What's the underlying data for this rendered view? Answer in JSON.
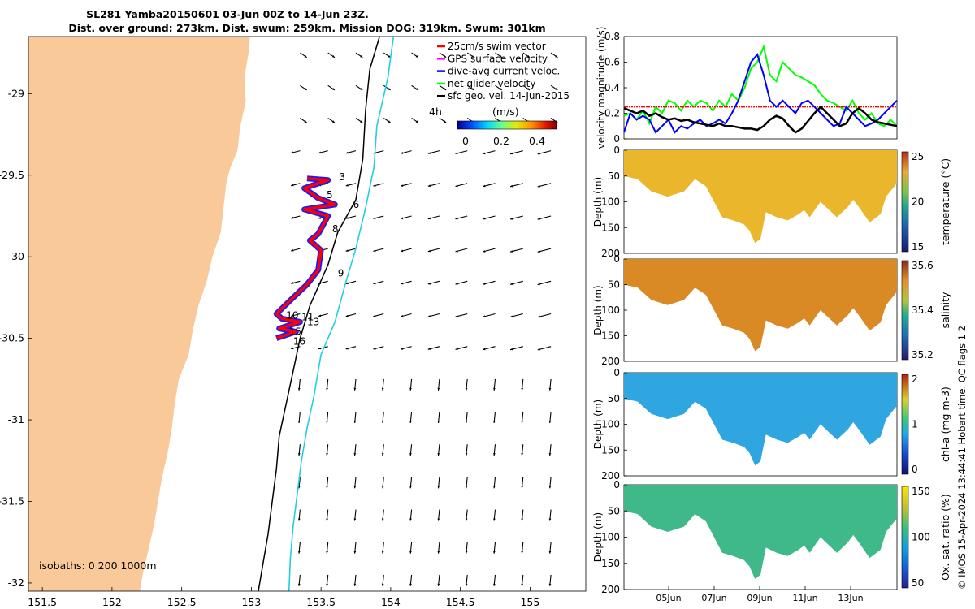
{
  "header": {
    "title_line1": "SL281 Yamba20150601 03-Jun 00Z to 14-Jun 23Z.",
    "title_line2": "Dist. over ground: 273km. Dist. swum: 259km. Mission DOG: 319km. Swum: 301km"
  },
  "legend": {
    "items": [
      {
        "label": "25cm/s swim vector",
        "color": "#ff0000"
      },
      {
        "label": "GPS surface velocity",
        "color": "#ff00ff"
      },
      {
        "label": "dive-avg current veloc.",
        "color": "#0000ff"
      },
      {
        "label": "net glider velocity",
        "color": "#00ff00"
      },
      {
        "label": "sfc geo. vel. 14-Jun-2015",
        "color": "#000000"
      }
    ],
    "time_label": "4h",
    "colorbar_unit": "(m/s)",
    "colorbar_ticks": [
      "0",
      "0.2",
      "0.4"
    ]
  },
  "isobath_note": "isobaths: 0   200  1000m",
  "copyright": "© IMOS 15-Apr-2024 13:44:41 Hobart time. QC flags 1  2",
  "colors": {
    "land": "#f9c99a",
    "isobath_200": "#000000",
    "isobath_1000": "#22cfe0",
    "track_red": "#ff0000",
    "track_blue": "#1a1aff"
  },
  "chart_data": [
    {
      "type": "map",
      "xlim": [
        151.4,
        155.4
      ],
      "ylim": [
        -32.05,
        -28.65
      ],
      "x_ticks": [
        "151.5",
        "152",
        "152.5",
        "153",
        "153.5",
        "154",
        "154.5",
        "155"
      ],
      "x_tick_values": [
        151.5,
        152,
        152.5,
        153,
        153.5,
        154,
        154.5,
        155
      ],
      "y_ticks": [
        "-29",
        "-29.5",
        "-30",
        "-30.5",
        "-31",
        "-31.5",
        "-32"
      ],
      "y_tick_values": [
        -29,
        -29.5,
        -30,
        -30.5,
        -31,
        -31.5,
        -32
      ],
      "track": [
        [
          153.4,
          -29.52
        ],
        [
          153.55,
          -29.53
        ],
        [
          153.38,
          -29.58
        ],
        [
          153.48,
          -29.64
        ],
        [
          153.6,
          -29.68
        ],
        [
          153.38,
          -29.71
        ],
        [
          153.55,
          -29.75
        ],
        [
          153.48,
          -29.86
        ],
        [
          153.42,
          -29.9
        ],
        [
          153.5,
          -29.96
        ],
        [
          153.48,
          -30.08
        ],
        [
          153.4,
          -30.17
        ],
        [
          153.3,
          -30.25
        ],
        [
          153.18,
          -30.35
        ],
        [
          153.22,
          -30.38
        ],
        [
          153.35,
          -30.4
        ],
        [
          153.2,
          -30.44
        ],
        [
          153.32,
          -30.46
        ],
        [
          153.18,
          -30.5
        ]
      ],
      "waypoint_labels": [
        {
          "label": "3",
          "lon": 153.63,
          "lat": -29.53
        },
        {
          "label": "5",
          "lon": 153.54,
          "lat": -29.64
        },
        {
          "label": "6",
          "lon": 153.73,
          "lat": -29.7
        },
        {
          "label": "8",
          "lon": 153.58,
          "lat": -29.85
        },
        {
          "label": "9",
          "lon": 153.62,
          "lat": -30.12
        },
        {
          "label": "10",
          "lon": 153.25,
          "lat": -30.38
        },
        {
          "label": "11",
          "lon": 153.36,
          "lat": -30.39
        },
        {
          "label": "13",
          "lon": 153.4,
          "lat": -30.42
        },
        {
          "label": "15",
          "lon": 153.27,
          "lat": -30.48
        },
        {
          "label": "16",
          "lon": 153.3,
          "lat": -30.54
        }
      ]
    },
    {
      "type": "line",
      "ylabel": "velocity magnitude (m/s)",
      "ylim": [
        0,
        0.8
      ],
      "y_ticks": [
        "0",
        "0.2",
        "0.4",
        "0.6",
        "0.8"
      ],
      "series": [
        {
          "color": "#00ff00",
          "values": [
            0.18,
            0.2,
            0.15,
            0.22,
            0.12,
            0.25,
            0.2,
            0.3,
            0.28,
            0.22,
            0.3,
            0.25,
            0.3,
            0.28,
            0.22,
            0.3,
            0.25,
            0.35,
            0.3,
            0.4,
            0.55,
            0.6,
            0.72,
            0.5,
            0.45,
            0.6,
            0.55,
            0.5,
            0.48,
            0.45,
            0.42,
            0.35,
            0.3,
            0.28,
            0.25,
            0.22,
            0.3,
            0.2,
            0.15,
            0.2,
            0.12,
            0.1,
            0.15,
            0.1
          ]
        },
        {
          "color": "#0000ff",
          "values": [
            0.05,
            0.2,
            0.15,
            0.18,
            0.15,
            0.05,
            0.1,
            0.15,
            0.05,
            0.1,
            0.08,
            0.12,
            0.15,
            0.1,
            0.12,
            0.15,
            0.12,
            0.2,
            0.3,
            0.45,
            0.6,
            0.66,
            0.5,
            0.3,
            0.25,
            0.3,
            0.25,
            0.2,
            0.28,
            0.3,
            0.25,
            0.2,
            0.15,
            0.1,
            0.12,
            0.25,
            0.2,
            0.15,
            0.1,
            0.12,
            0.15,
            0.2,
            0.25,
            0.3
          ]
        },
        {
          "color": "#000000",
          "values": [
            0.24,
            0.22,
            0.2,
            0.22,
            0.18,
            0.2,
            0.17,
            0.15,
            0.16,
            0.14,
            0.15,
            0.13,
            0.12,
            0.11,
            0.1,
            0.12,
            0.1,
            0.1,
            0.09,
            0.08,
            0.08,
            0.07,
            0.1,
            0.15,
            0.18,
            0.16,
            0.1,
            0.05,
            0.08,
            0.14,
            0.2,
            0.25,
            0.2,
            0.15,
            0.1,
            0.12,
            0.2,
            0.24,
            0.2,
            0.15,
            0.13,
            0.12,
            0.11,
            0.1
          ]
        },
        {
          "color": "#ff0000",
          "values": [
            0.25,
            0.25,
            0.25,
            0.25,
            0.25,
            0.25,
            0.25,
            0.25,
            0.25,
            0.25,
            0.25,
            0.25,
            0.25,
            0.25,
            0.25,
            0.25,
            0.25,
            0.25,
            0.25,
            0.25,
            0.25,
            0.25,
            0.25,
            0.25,
            0.25,
            0.25,
            0.25,
            0.25,
            0.25,
            0.25,
            0.25,
            0.25,
            0.25,
            0.25,
            0.25,
            0.25,
            0.25,
            0.25,
            0.25,
            0.25,
            0.25,
            0.25,
            0.25,
            0.25
          ]
        }
      ]
    },
    {
      "type": "heatmap",
      "ylabel": "Depth (m)",
      "cbar_label": "temperature (°C)",
      "cbar_ticks": [
        "25",
        "20",
        "15"
      ],
      "y_ticks": [
        "0",
        "50",
        "100",
        "150",
        "200"
      ],
      "fill": "#e9b62c"
    },
    {
      "type": "heatmap",
      "ylabel": "Depth (m)",
      "cbar_label": "salinity",
      "cbar_ticks": [
        "35.6",
        "35.4",
        "35.2"
      ],
      "y_ticks": [
        "0",
        "50",
        "100",
        "150",
        "200"
      ],
      "fill": "#d98a25"
    },
    {
      "type": "heatmap",
      "ylabel": "Depth (m)",
      "cbar_label": "chl-a (mg m-3)",
      "cbar_ticks": [
        "2",
        "1",
        "0"
      ],
      "y_ticks": [
        "0",
        "50",
        "100",
        "150",
        "200"
      ],
      "fill": "#2fa6e0"
    },
    {
      "type": "heatmap",
      "ylabel": "Depth (m)",
      "cbar_label": "Ox. sat. ratio (%)",
      "cbar_ticks": [
        "150",
        "100",
        "50"
      ],
      "y_ticks": [
        "0",
        "50",
        "100",
        "150",
        "200"
      ],
      "x_ticks": [
        "05Jun",
        "07Jun",
        "09Jun",
        "11Jun",
        "13Jun"
      ],
      "fill": "#3fb88a"
    }
  ]
}
